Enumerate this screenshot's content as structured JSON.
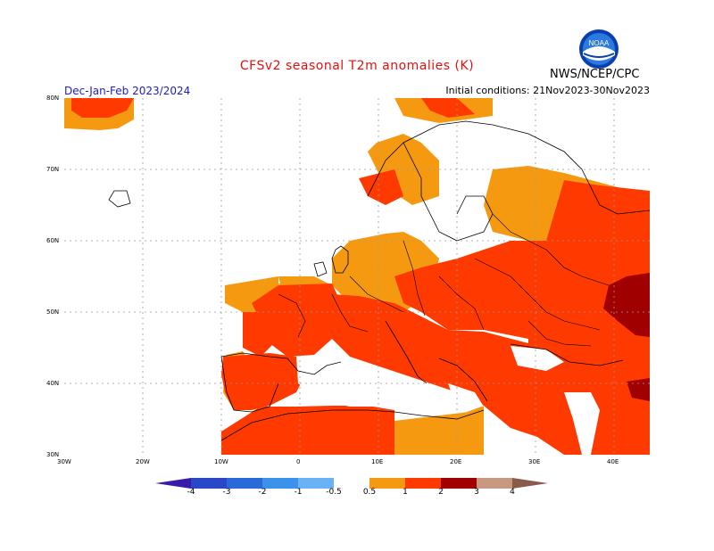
{
  "header": {
    "title": "CFSv2  seasonal  T2m  anomalies  (K)",
    "period": "Dec-Jan-Feb 2023/2024",
    "initial_conditions": "Initial conditions: 21Nov2023-30Nov2023",
    "agency": "NWS/NCEP/CPC",
    "logo_text": "NOAA"
  },
  "axes": {
    "lat_labels": [
      "80N",
      "70N",
      "60N",
      "50N",
      "40N",
      "30N"
    ],
    "lon_labels": [
      "30W",
      "20W",
      "10W",
      "0",
      "10E",
      "20E",
      "30E",
      "40E"
    ]
  },
  "legend": {
    "ticks": [
      "-4",
      "-3",
      "-2",
      "-1",
      "-0.5",
      "0.5",
      "1",
      "2",
      "3",
      "4"
    ],
    "colors": [
      "#3a1aa8",
      "#2848c8",
      "#2a6ad8",
      "#3c92ea",
      "#6ab2f5",
      "#ffffff",
      "#f59a10",
      "#ff3a00",
      "#a00000",
      "#c89880",
      "#8a5a4a"
    ]
  },
  "colors": {
    "land_outline": "#000000",
    "ocean": "#ffffff",
    "anom_0_5_1": "#f59a10",
    "anom_1_2": "#ff3a00",
    "anom_2_3": "#a00000"
  }
}
